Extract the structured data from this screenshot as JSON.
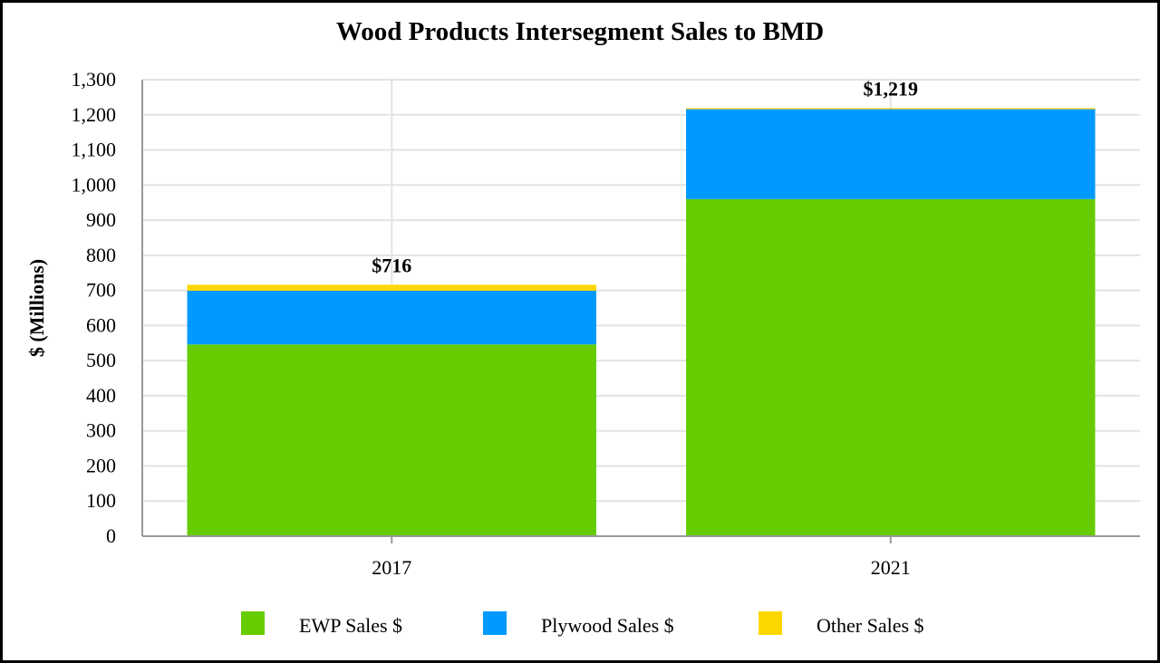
{
  "chart_data": {
    "type": "bar",
    "stacked": true,
    "title": "Wood Products Intersegment Sales to BMD",
    "xlabel": "",
    "ylabel": "$ (Millions)",
    "ylim": [
      0,
      1300
    ],
    "yticks": [
      0,
      100,
      200,
      300,
      400,
      500,
      600,
      700,
      800,
      900,
      1000,
      1100,
      1200,
      1300
    ],
    "ytick_labels": [
      "0",
      "100",
      "200",
      "300",
      "400",
      "500",
      "600",
      "700",
      "800",
      "900",
      "1,000",
      "1,100",
      "1,200",
      "1,300"
    ],
    "categories": [
      "2017",
      "2021"
    ],
    "series": [
      {
        "name": "EWP Sales $",
        "values": [
          546,
          960
        ],
        "color": "#66cc00"
      },
      {
        "name": "Plywood Sales $",
        "values": [
          153,
          256
        ],
        "color": "#0099ff"
      },
      {
        "name": "Other Sales $",
        "values": [
          17,
          3
        ],
        "color": "#ffd700"
      }
    ],
    "totals": [
      "$716",
      "$1,219"
    ],
    "grid": true,
    "legend_position": "bottom"
  }
}
